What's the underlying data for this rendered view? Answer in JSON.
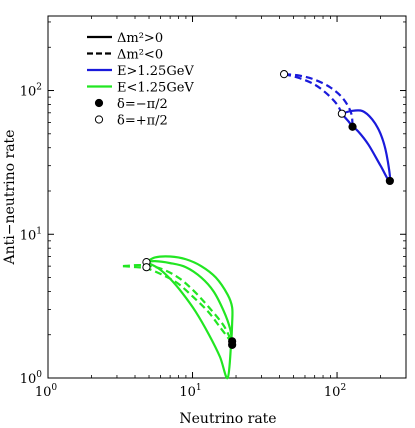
{
  "chart_data": {
    "type": "line",
    "xlabel": "Neutrino rate",
    "ylabel": "Anti−neutrino rate",
    "xscale": "log",
    "yscale": "log",
    "xlim": [
      1,
      300
    ],
    "ylim": [
      1,
      330
    ],
    "x_ticks": [
      {
        "value": 1,
        "base": "10",
        "exp": "0"
      },
      {
        "value": 10,
        "base": "10",
        "exp": "1"
      },
      {
        "value": 100,
        "base": "10",
        "exp": "2"
      }
    ],
    "y_ticks": [
      {
        "value": 1,
        "base": "10",
        "exp": "0"
      },
      {
        "value": 10,
        "base": "10",
        "exp": "1"
      },
      {
        "value": 100,
        "base": "10",
        "exp": "2"
      }
    ],
    "grid": false,
    "legend_position": "top-left",
    "legend": [
      {
        "label": "Δm²>0",
        "style": "solid",
        "color": "#000000"
      },
      {
        "label": "Δm²<0",
        "style": "dashed",
        "color": "#000000"
      },
      {
        "label": "E>1.25GeV",
        "style": "solid",
        "color": "#1a1adb"
      },
      {
        "label": "E<1.25GeV",
        "style": "solid",
        "color": "#22e622"
      },
      {
        "label": "δ=−π/2",
        "marker": "filled-circle"
      },
      {
        "label": "δ=+π/2",
        "marker": "open-circle"
      }
    ],
    "colors": {
      "high_energy": "#1a1adb",
      "low_energy": "#22e622"
    },
    "series": [
      {
        "energy": "high",
        "hierarchy": "normal",
        "style": "solid",
        "x": [
          108,
          125,
          150,
          175,
          200,
          220,
          232,
          200,
          165,
          140,
          128
        ],
        "y": [
          69,
          72,
          72,
          63,
          50,
          36,
          23.5,
          30,
          42,
          52,
          56
        ]
      },
      {
        "energy": "high",
        "hierarchy": "normal",
        "style": "solid",
        "x": [
          108,
          112,
          120,
          128
        ],
        "y": [
          69,
          66,
          61,
          56
        ]
      },
      {
        "energy": "high",
        "hierarchy": "inverted",
        "style": "dashed",
        "x": [
          43,
          55,
          70,
          90,
          110,
          125,
          128
        ],
        "y": [
          130,
          127,
          119,
          105,
          88,
          70,
          56
        ]
      },
      {
        "energy": "high",
        "hierarchy": "inverted",
        "style": "dashed",
        "x": [
          43,
          55,
          70,
          85,
          100,
          108
        ],
        "y": [
          130,
          122,
          110,
          95,
          80,
          69
        ]
      },
      {
        "energy": "low",
        "hierarchy": "normal",
        "style": "solid",
        "x": [
          4.8,
          5.5,
          7.0,
          9.0,
          11.5,
          14.5,
          17.5,
          18.8,
          18.8,
          18.5,
          17.5,
          15.5,
          13.0,
          10.5,
          8.5,
          7.0,
          5.8,
          4.8
        ],
        "y": [
          6.4,
          6.9,
          7.0,
          6.7,
          6.0,
          5.0,
          3.8,
          3.1,
          2.4,
          1.75,
          1.0,
          1.4,
          2.0,
          2.9,
          3.9,
          4.9,
          5.8,
          6.4
        ]
      },
      {
        "energy": "low",
        "hierarchy": "normal",
        "style": "solid",
        "x": [
          4.8,
          5.5,
          7.0,
          9.0,
          11.5,
          14.0,
          16.5,
          18.2,
          18.8
        ],
        "y": [
          6.4,
          6.5,
          6.3,
          5.9,
          5.0,
          4.0,
          2.9,
          2.2,
          1.75
        ]
      },
      {
        "energy": "low",
        "hierarchy": "inverted",
        "style": "dashed",
        "x": [
          3.3,
          4.2,
          5.2,
          6.5,
          8.2,
          10.3,
          13.0,
          16.5,
          18.8
        ],
        "y": [
          6.0,
          6.1,
          6.0,
          5.6,
          4.9,
          4.0,
          3.1,
          2.3,
          1.75
        ]
      },
      {
        "energy": "low",
        "hierarchy": "inverted",
        "style": "dashed",
        "x": [
          3.3,
          4.1,
          4.8,
          6.0,
          7.8,
          10.0,
          12.8,
          15.8,
          18.8
        ],
        "y": [
          6.0,
          5.9,
          5.8,
          5.3,
          4.6,
          3.7,
          2.9,
          2.2,
          1.75
        ]
      }
    ],
    "markers": [
      {
        "x": 232,
        "y": 23.5,
        "fill": "filled",
        "delta": "-pi/2"
      },
      {
        "x": 128,
        "y": 56,
        "fill": "filled",
        "delta": "-pi/2"
      },
      {
        "x": 43,
        "y": 130,
        "fill": "open",
        "delta": "+pi/2"
      },
      {
        "x": 108,
        "y": 69,
        "fill": "open",
        "delta": "+pi/2"
      },
      {
        "x": 18.8,
        "y": 1.8,
        "fill": "filled",
        "delta": "-pi/2"
      },
      {
        "x": 18.8,
        "y": 1.7,
        "fill": "filled",
        "delta": "-pi/2"
      },
      {
        "x": 4.8,
        "y": 6.4,
        "fill": "open",
        "delta": "+pi/2"
      },
      {
        "x": 4.8,
        "y": 5.9,
        "fill": "open",
        "delta": "+pi/2"
      }
    ]
  }
}
